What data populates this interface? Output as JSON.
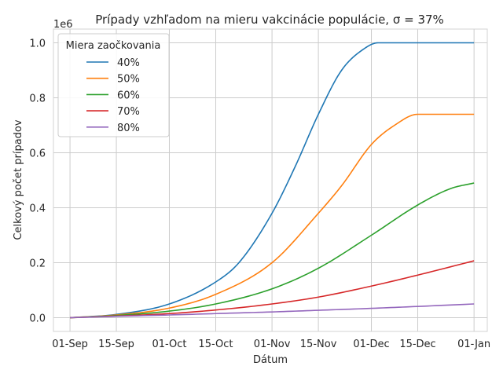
{
  "chart_data": {
    "type": "line",
    "title": "Prípady vzhľadom na mieru vakcinácie populácie, σ = 37%",
    "xlabel": "Dátum",
    "ylabel": "Celkový počet prípadov",
    "y_offset_label": "1e6",
    "x_ticks": [
      "01-Sep",
      "15-Sep",
      "01-Oct",
      "15-Oct",
      "01-Nov",
      "15-Nov",
      "01-Dec",
      "15-Dec",
      "01-Jan"
    ],
    "y_ticks": [
      "0.0",
      "0.2",
      "0.4",
      "0.6",
      "0.8",
      "1.0"
    ],
    "xlim": [
      "2021-08-27",
      "2022-01-05"
    ],
    "ylim": [
      -0.05,
      1.05
    ],
    "grid": true,
    "legend": {
      "title": "Miera zaočkovania",
      "placement": "top-left"
    },
    "series": [
      {
        "name": "40%",
        "color": "#1f77b4",
        "points": [
          [
            "2021-09-01",
            0
          ],
          [
            "2021-09-15",
            0.012
          ],
          [
            "2021-10-01",
            0.05
          ],
          [
            "2021-10-15",
            0.13
          ],
          [
            "2021-10-22",
            0.2
          ],
          [
            "2021-11-01",
            0.38
          ],
          [
            "2021-11-08",
            0.55
          ],
          [
            "2021-11-15",
            0.74
          ],
          [
            "2021-11-22",
            0.9
          ],
          [
            "2021-11-29",
            0.98
          ],
          [
            "2021-12-03",
            1.0
          ],
          [
            "2021-12-15",
            1.0
          ],
          [
            "2022-01-01",
            1.0
          ]
        ]
      },
      {
        "name": "50%",
        "color": "#ff7f0e",
        "points": [
          [
            "2021-09-01",
            0
          ],
          [
            "2021-09-15",
            0.01
          ],
          [
            "2021-10-01",
            0.035
          ],
          [
            "2021-10-15",
            0.085
          ],
          [
            "2021-11-01",
            0.2
          ],
          [
            "2021-11-15",
            0.38
          ],
          [
            "2021-11-22",
            0.48
          ],
          [
            "2021-12-01",
            0.63
          ],
          [
            "2021-12-08",
            0.7
          ],
          [
            "2021-12-15",
            0.74
          ],
          [
            "2021-12-20",
            0.74
          ],
          [
            "2022-01-01",
            0.74
          ]
        ]
      },
      {
        "name": "60%",
        "color": "#2ca02c",
        "points": [
          [
            "2021-09-01",
            0
          ],
          [
            "2021-09-15",
            0.008
          ],
          [
            "2021-10-01",
            0.024
          ],
          [
            "2021-10-15",
            0.05
          ],
          [
            "2021-11-01",
            0.105
          ],
          [
            "2021-11-15",
            0.18
          ],
          [
            "2021-12-01",
            0.3
          ],
          [
            "2021-12-15",
            0.41
          ],
          [
            "2021-12-25",
            0.47
          ],
          [
            "2022-01-01",
            0.49
          ]
        ]
      },
      {
        "name": "70%",
        "color": "#d62728",
        "points": [
          [
            "2021-09-01",
            0
          ],
          [
            "2021-09-15",
            0.006
          ],
          [
            "2021-10-01",
            0.015
          ],
          [
            "2021-10-15",
            0.028
          ],
          [
            "2021-11-01",
            0.05
          ],
          [
            "2021-11-15",
            0.075
          ],
          [
            "2021-12-01",
            0.115
          ],
          [
            "2021-12-15",
            0.155
          ],
          [
            "2022-01-01",
            0.207
          ]
        ]
      },
      {
        "name": "80%",
        "color": "#9467bd",
        "points": [
          [
            "2021-09-01",
            0
          ],
          [
            "2021-09-15",
            0.005
          ],
          [
            "2021-10-01",
            0.01
          ],
          [
            "2021-10-15",
            0.015
          ],
          [
            "2021-11-01",
            0.021
          ],
          [
            "2021-11-15",
            0.027
          ],
          [
            "2021-12-01",
            0.034
          ],
          [
            "2021-12-15",
            0.041
          ],
          [
            "2022-01-01",
            0.05
          ]
        ]
      }
    ]
  }
}
